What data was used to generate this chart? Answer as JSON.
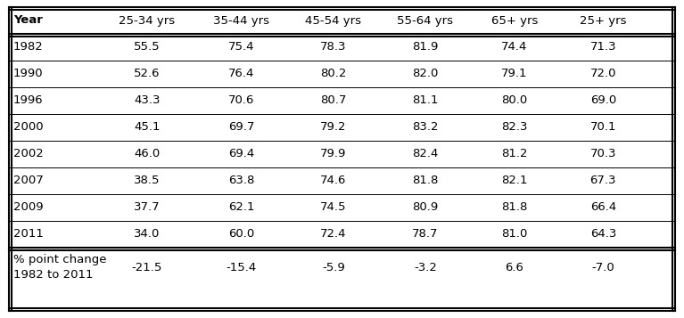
{
  "columns": [
    "Year",
    "25-34 yrs",
    "35-44 yrs",
    "45-54 yrs",
    "55-64 yrs",
    "65+ yrs",
    "25+ yrs"
  ],
  "rows": [
    [
      "1982",
      "55.5",
      "75.4",
      "78.3",
      "81.9",
      "74.4",
      "71.3"
    ],
    [
      "1990",
      "52.6",
      "76.4",
      "80.2",
      "82.0",
      "79.1",
      "72.0"
    ],
    [
      "1996",
      "43.3",
      "70.6",
      "80.7",
      "81.1",
      "80.0",
      "69.0"
    ],
    [
      "2000",
      "45.1",
      "69.7",
      "79.2",
      "83.2",
      "82.3",
      "70.1"
    ],
    [
      "2002",
      "46.0",
      "69.4",
      "79.9",
      "82.4",
      "81.2",
      "70.3"
    ],
    [
      "2007",
      "38.5",
      "63.8",
      "74.6",
      "81.8",
      "82.1",
      "67.3"
    ],
    [
      "2009",
      "37.7",
      "62.1",
      "74.5",
      "80.9",
      "81.8",
      "66.4"
    ],
    [
      "2011",
      "34.0",
      "60.0",
      "72.4",
      "78.7",
      "81.0",
      "64.3"
    ]
  ],
  "footer_label": "% point change\n1982 to 2011",
  "footer_values": [
    "-21.5",
    "-15.4",
    "-5.9",
    "-3.2",
    "6.6",
    "-7.0"
  ],
  "background_color": "#ffffff",
  "text_color": "#000000",
  "font_size": 9.5,
  "header_font_size": 9.5,
  "fig_width": 7.67,
  "fig_height": 3.57,
  "dpi": 100
}
